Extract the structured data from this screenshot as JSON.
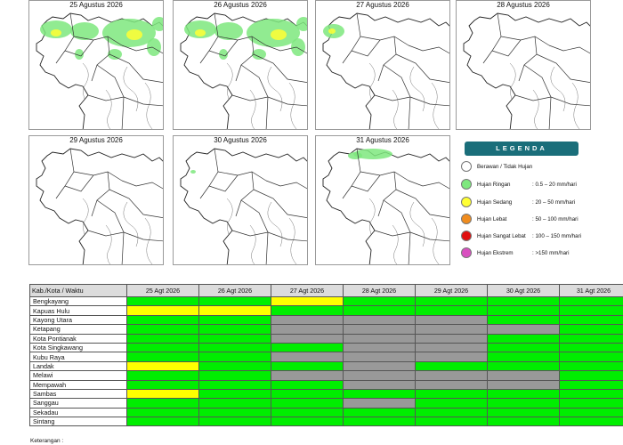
{
  "maps": {
    "panels": [
      {
        "title": "25 Agustus 2026",
        "rain": "heavy"
      },
      {
        "title": "26 Agustus 2026",
        "rain": "heavy"
      },
      {
        "title": "27 Agustus 2026",
        "rain": "light-nw"
      },
      {
        "title": "28 Agustus 2026",
        "rain": "none"
      },
      {
        "title": "29 Agustus 2026",
        "rain": "none"
      },
      {
        "title": "30 Agustus 2026",
        "rain": "trace"
      },
      {
        "title": "31 Agustus 2026",
        "rain": "light-north"
      }
    ]
  },
  "legend": {
    "title": "LEGENDA",
    "items": [
      {
        "label": "Berawan / Tidak Hujan",
        "range": "",
        "color": "#ffffff"
      },
      {
        "label": "Hujan Ringan",
        "range": ": 0.5 – 20 mm/hari",
        "color": "#7ee87e"
      },
      {
        "label": "Hujan Sedang",
        "range": ": 20 – 50 mm/hari",
        "color": "#ffff33"
      },
      {
        "label": "Hujan Lebat",
        "range": ": 50 – 100 mm/hari",
        "color": "#f08c1e"
      },
      {
        "label": "Hujan Sangat Lebat",
        "range": ": 100 – 150 mm/hari",
        "color": "#e01010"
      },
      {
        "label": "Hujan Ekstrem",
        "range": ": >150 mm/hari",
        "color": "#d94fc0"
      }
    ]
  },
  "table": {
    "header": [
      "Kab./Kota / Waktu",
      "25 Agt 2026",
      "26 Agt 2026",
      "27 Agt 2026",
      "28 Agt 2026",
      "29 Agt 2026",
      "30 Agt 2026",
      "31 Agt 2026"
    ],
    "rows": [
      {
        "name": "Bengkayang",
        "cells": [
          "green",
          "green",
          "yellow",
          "green",
          "green",
          "green",
          "green"
        ]
      },
      {
        "name": "Kapuas Hulu",
        "cells": [
          "yellow",
          "yellow",
          "green",
          "green",
          "green",
          "green",
          "green"
        ]
      },
      {
        "name": "Kayong Utara",
        "cells": [
          "green",
          "green",
          "gray",
          "gray",
          "gray",
          "green",
          "green"
        ]
      },
      {
        "name": "Ketapang",
        "cells": [
          "green",
          "green",
          "gray",
          "gray",
          "gray",
          "gray",
          "green"
        ]
      },
      {
        "name": "Kota Pontianak",
        "cells": [
          "green",
          "green",
          "gray",
          "gray",
          "gray",
          "green",
          "green"
        ]
      },
      {
        "name": "Kota Singkawang",
        "cells": [
          "green",
          "green",
          "green",
          "gray",
          "gray",
          "green",
          "green"
        ]
      },
      {
        "name": "Kubu Raya",
        "cells": [
          "green",
          "green",
          "gray",
          "gray",
          "gray",
          "green",
          "green"
        ]
      },
      {
        "name": "Landak",
        "cells": [
          "yellow",
          "green",
          "green",
          "gray",
          "green",
          "green",
          "green"
        ]
      },
      {
        "name": "Melawi",
        "cells": [
          "green",
          "green",
          "gray",
          "gray",
          "gray",
          "gray",
          "green"
        ]
      },
      {
        "name": "Mempawah",
        "cells": [
          "green",
          "green",
          "green",
          "gray",
          "gray",
          "gray",
          "green"
        ]
      },
      {
        "name": "Sambas",
        "cells": [
          "yellow",
          "green",
          "green",
          "green",
          "green",
          "green",
          "green"
        ]
      },
      {
        "name": "Sanggau",
        "cells": [
          "green",
          "green",
          "green",
          "gray",
          "green",
          "green",
          "green"
        ]
      },
      {
        "name": "Sekadau",
        "cells": [
          "green",
          "green",
          "green",
          "green",
          "green",
          "green",
          "green"
        ]
      },
      {
        "name": "Sintang",
        "cells": [
          "green",
          "green",
          "green",
          "green",
          "green",
          "green",
          "green"
        ]
      }
    ]
  },
  "footnote": "Keterangan :"
}
